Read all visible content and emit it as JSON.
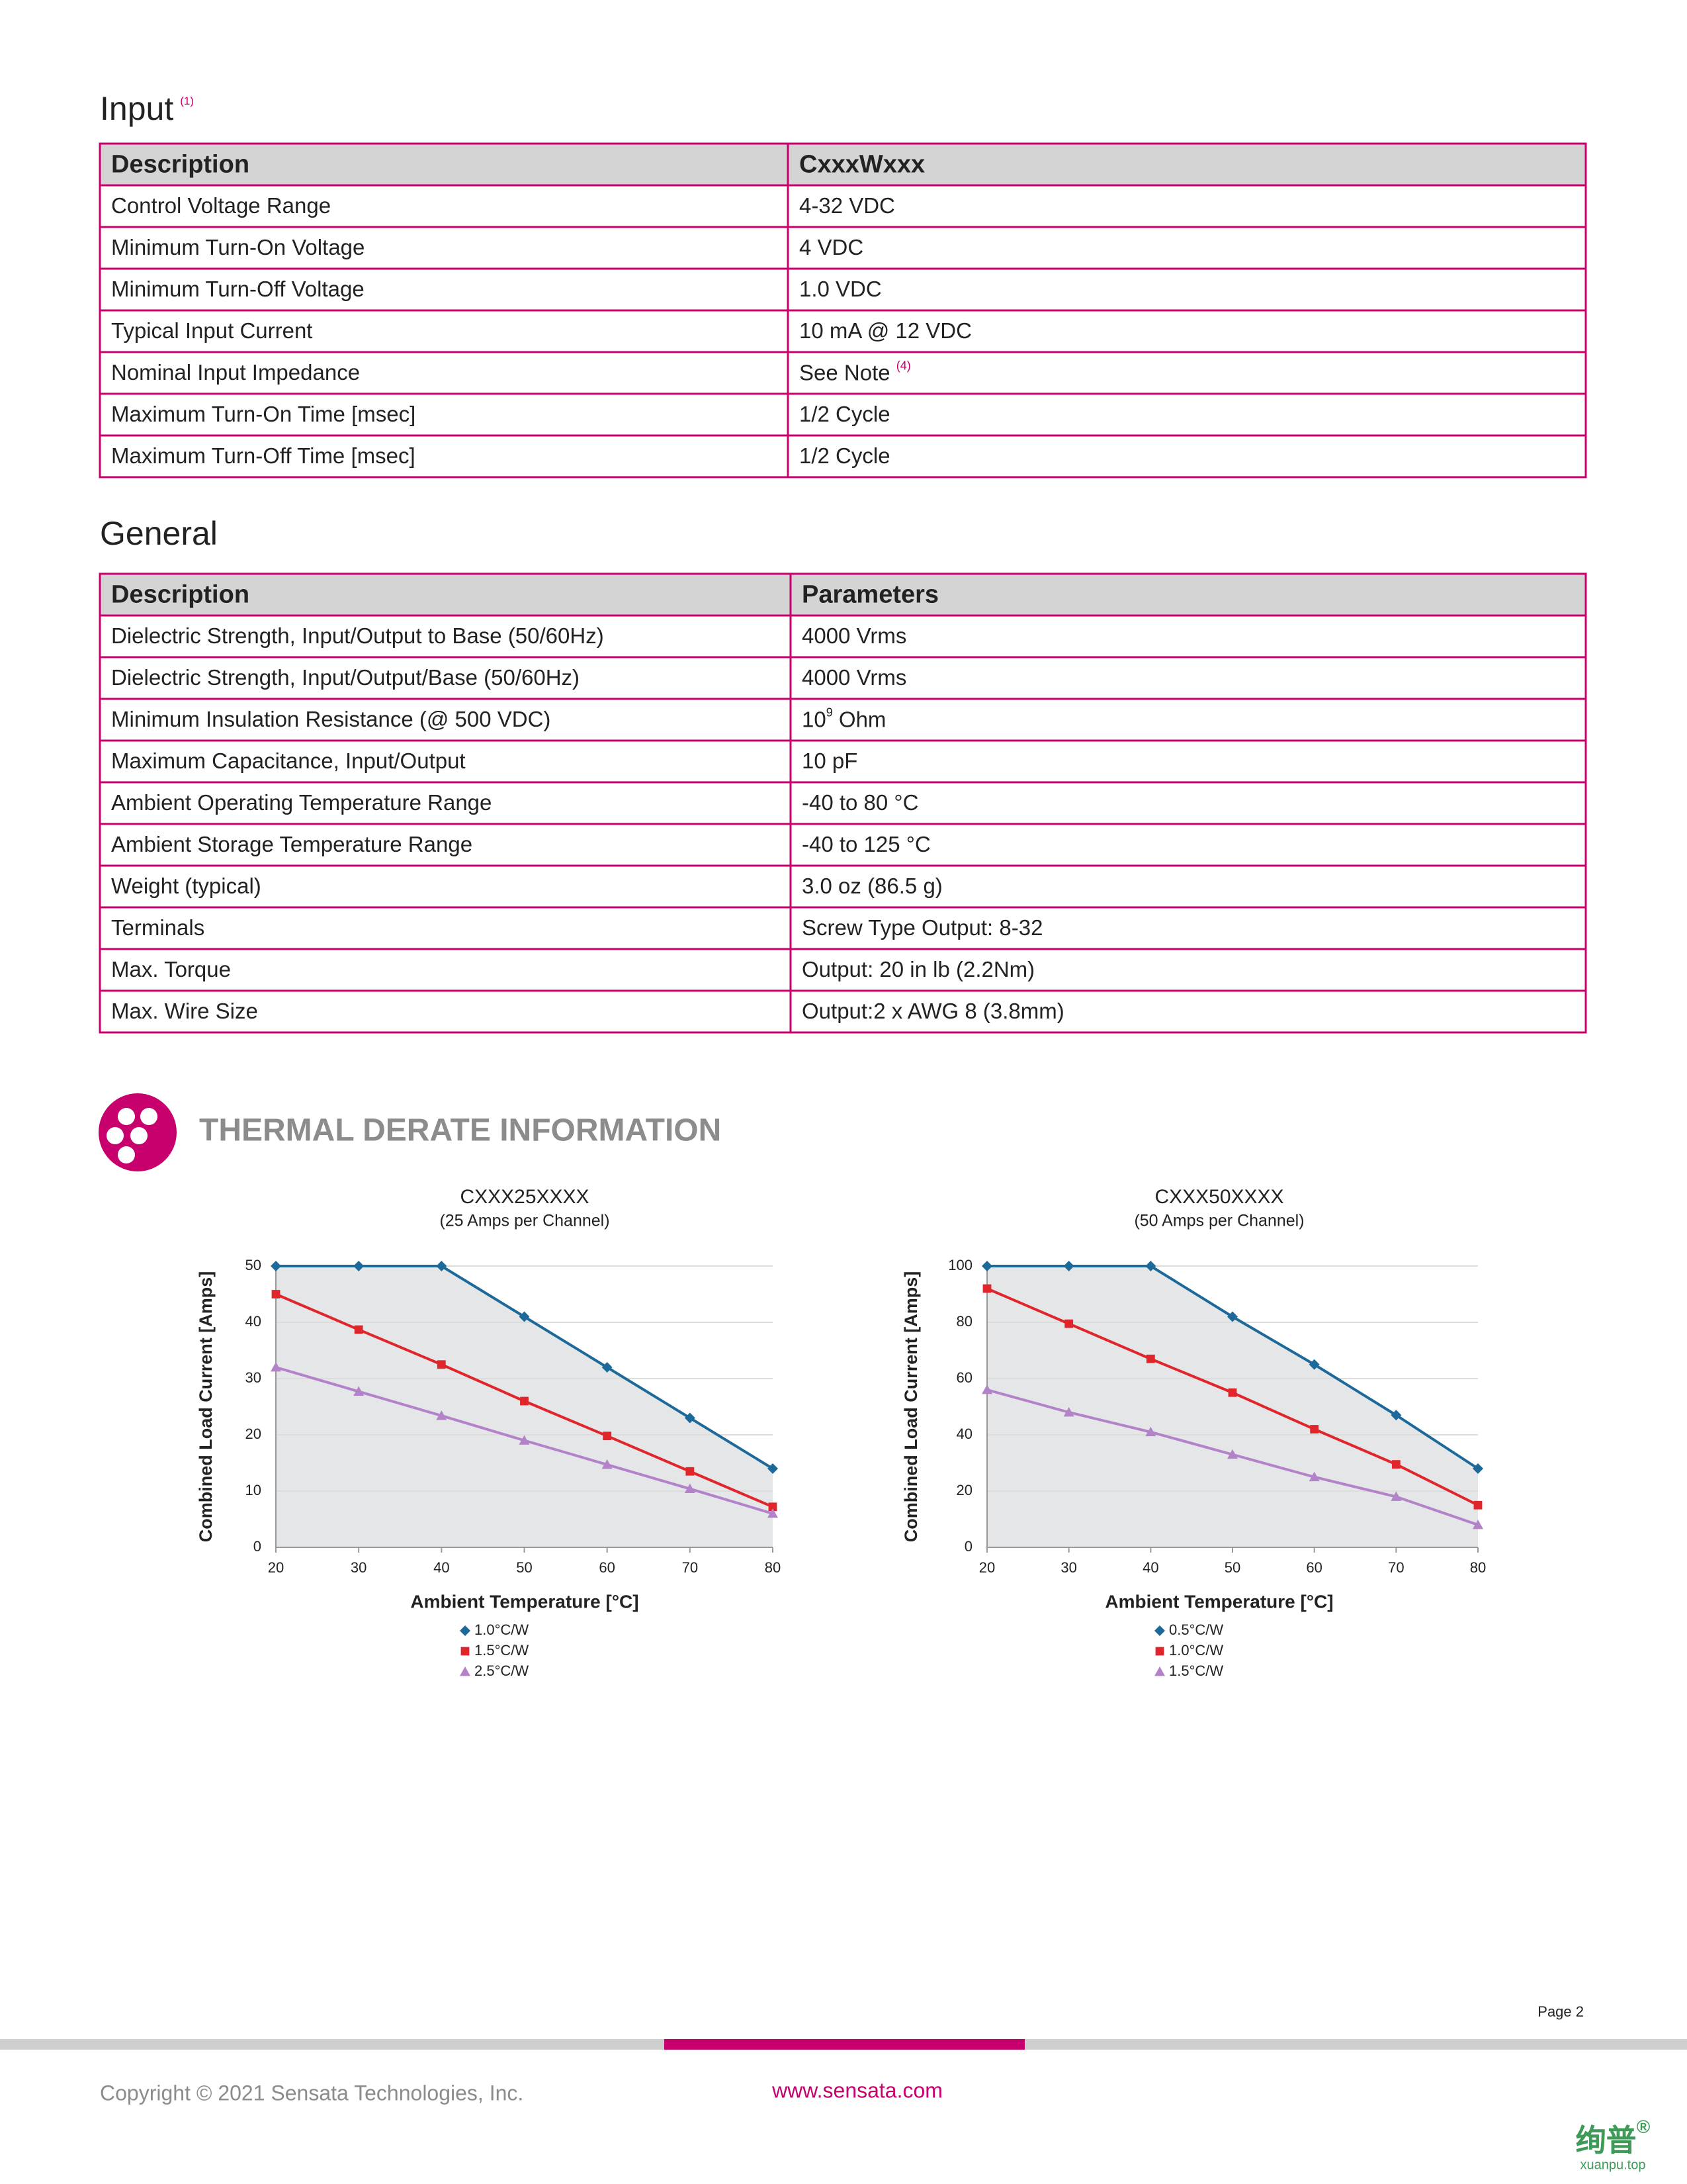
{
  "input": {
    "title": "Input",
    "note": "(1)",
    "columns": [
      "Description",
      "CxxxWxxx"
    ],
    "rows": [
      [
        "Control Voltage Range",
        "4-32 VDC"
      ],
      [
        "Minimum Turn-On Voltage",
        "4 VDC"
      ],
      [
        "Minimum Turn-Off Voltage",
        "1.0 VDC"
      ],
      [
        "Typical Input Current",
        "10 mA @ 12 VDC"
      ],
      [
        "Nominal Input Impedance",
        {
          "text": "See Note ",
          "sup": "(4)"
        }
      ],
      [
        "Maximum Turn-On Time [msec]",
        "1/2 Cycle"
      ],
      [
        "Maximum Turn-Off Time [msec]",
        "1/2 Cycle"
      ]
    ]
  },
  "general": {
    "title": "General",
    "columns": [
      "Description",
      "Parameters"
    ],
    "rows": [
      [
        "Dielectric Strength, Input/Output to Base (50/60Hz)",
        "4000 Vrms"
      ],
      [
        "Dielectric Strength, Input/Output/Base (50/60Hz)",
        "4000 Vrms"
      ],
      [
        "Minimum Insulation Resistance (@ 500 VDC)",
        {
          "text": "10",
          "sup": "9",
          "after": " Ohm"
        }
      ],
      [
        "Maximum Capacitance, Input/Output",
        "10 pF"
      ],
      [
        "Ambient Operating Temperature Range",
        "-40 to 80 °C"
      ],
      [
        "Ambient Storage Temperature Range",
        "-40 to 125 °C"
      ],
      [
        "Weight (typical)",
        "3.0 oz (86.5 g)"
      ],
      [
        "Terminals",
        "Screw Type Output: 8-32"
      ],
      [
        "Max. Torque",
        "Output: 20 in lb (2.2Nm)"
      ],
      [
        "Max. Wire Size",
        "Output:2 x AWG 8 (3.8mm)"
      ]
    ]
  },
  "section_title": "THERMAL DERATE INFORMATION",
  "chart_data": [
    {
      "type": "line",
      "title": "CXXX25XXXX",
      "subtitle": "(25 Amps per Channel)",
      "x_label": "Ambient Temperature [°C]",
      "y_label": "Combined Load Current [Amps]",
      "x": [
        20,
        30,
        40,
        50,
        60,
        70,
        80
      ],
      "xlim": [
        20,
        80
      ],
      "xticks": [
        20,
        30,
        40,
        50,
        60,
        70,
        80
      ],
      "ylim": [
        0,
        50
      ],
      "yticks": [
        0,
        10,
        20,
        30,
        40,
        50
      ],
      "grid": true,
      "series": [
        {
          "name": "1.0°C/W",
          "color": "#1d6a9a",
          "marker": "diamond",
          "values": [
            50,
            50,
            50,
            41,
            32,
            23,
            14
          ]
        },
        {
          "name": "1.5°C/W",
          "color": "#e0262b",
          "marker": "square",
          "values": [
            45,
            38.7,
            32.5,
            26,
            19.8,
            13.5,
            7.2
          ]
        },
        {
          "name": "2.5°C/W",
          "color": "#b283c8",
          "marker": "triangle",
          "values": [
            32,
            27.7,
            23.4,
            19,
            14.7,
            10.4,
            6
          ]
        }
      ]
    },
    {
      "type": "line",
      "title": "CXXX50XXXX",
      "subtitle": "(50 Amps per Channel)",
      "x_label": "Ambient Temperature [°C]",
      "y_label": "Combined Load Current [Amps]",
      "x": [
        20,
        30,
        40,
        50,
        60,
        70,
        80
      ],
      "xlim": [
        20,
        80
      ],
      "xticks": [
        20,
        30,
        40,
        50,
        60,
        70,
        80
      ],
      "ylim": [
        0,
        100
      ],
      "yticks": [
        0,
        20,
        40,
        60,
        80,
        100
      ],
      "grid": true,
      "series": [
        {
          "name": "0.5°C/W",
          "color": "#1d6a9a",
          "marker": "diamond",
          "values": [
            100,
            100,
            100,
            82,
            65,
            47,
            28
          ]
        },
        {
          "name": "1.0°C/W",
          "color": "#e0262b",
          "marker": "square",
          "values": [
            92,
            79.5,
            67,
            55,
            42,
            29.5,
            15
          ]
        },
        {
          "name": "1.5°C/W",
          "color": "#b283c8",
          "marker": "triangle",
          "values": [
            56,
            48,
            41,
            33,
            25,
            18,
            8
          ]
        }
      ]
    }
  ],
  "footer": {
    "page": "Page 2",
    "copyright": "Copyright © 2021 Sensata Technologies, Inc.",
    "url": "www.sensata.com",
    "watermark": "绚普",
    "watermark_mark": "®",
    "watermark_site": "xuanpu.top"
  }
}
